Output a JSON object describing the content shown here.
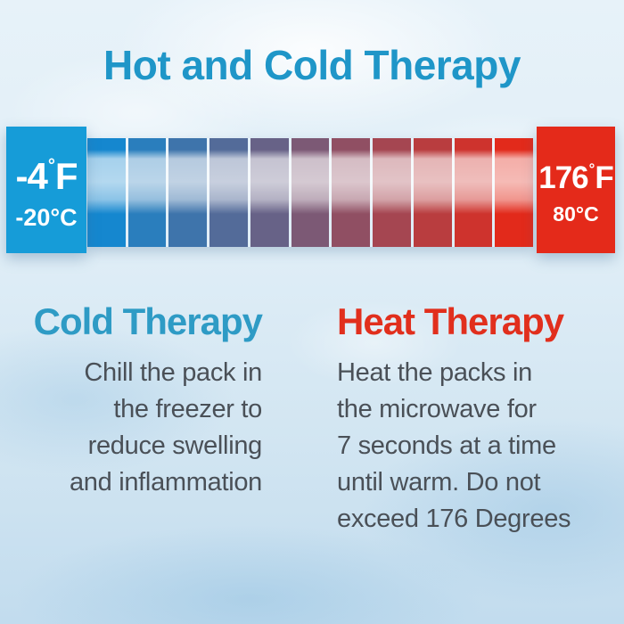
{
  "title": {
    "text": "Hot and Cold Therapy",
    "color": "#1f96c8"
  },
  "thermometer": {
    "segment_count": 11,
    "gradient_cold_color": "#1587cf",
    "gradient_hot_color": "#e22a1b",
    "cold_end": {
      "bg_color": "#169cd8",
      "fahrenheit_value": "-4",
      "degree_symbol": "°",
      "fahrenheit_unit": "F",
      "celsius": "-20°C"
    },
    "hot_end": {
      "bg_color": "#e42a1a",
      "fahrenheit_value": "176",
      "degree_symbol": "°",
      "fahrenheit_unit": "F",
      "celsius": "80°C"
    }
  },
  "cold_section": {
    "heading": "Cold Therapy",
    "heading_color": "#2e9bc5",
    "lines": [
      "Chill the pack in",
      "the freezer to",
      "reduce swelling",
      "and inflammation"
    ]
  },
  "heat_section": {
    "heading": "Heat Therapy",
    "heading_color": "#e12f1d",
    "lines": [
      "Heat the packs in",
      "the microwave for",
      "7 seconds at a time",
      "until warm. Do not",
      "exceed 176 Degrees"
    ]
  }
}
